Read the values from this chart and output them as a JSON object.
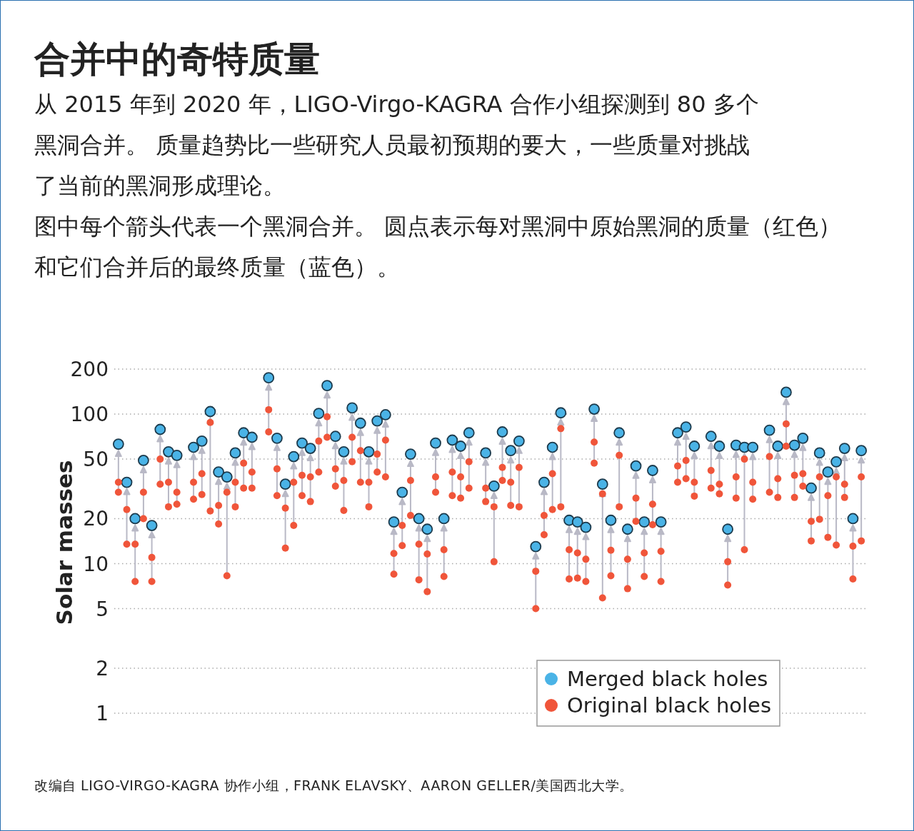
{
  "chart_data": {
    "type": "scatter",
    "title": "合并中的奇特质量",
    "subtitle": "从 2015 年到 2020 年，LIGO-Virgo-KAGRA 合作小组探测到 80 多个黑洞合并。 质量趋势比一些研究人员最初预期的要大，一些质量对挑战了当前的黑洞形成理论。",
    "annotations": [
      "图中每个箭头代表一个黑洞合并。 圆点表示每对黑洞中原始黑洞的质量（红色）和它们合并后的最终质量（蓝色）。",
      "改编自 LIGO-VIRGO-KAGRA 协作小组，FRANK ELAVSKY、AARON GELLER/美国西北大学。"
    ],
    "ylabel": "Solar masses",
    "log": "y",
    "grid": "y",
    "legend": "bottom right",
    "marker": "circle",
    "tick_labels": "y",
    "ylim": [
      1,
      200
    ],
    "yticks": [
      1,
      2,
      5,
      10,
      20,
      50,
      100,
      200
    ],
    "categories": [
      null,
      null,
      null,
      null,
      null,
      null,
      null,
      null,
      null,
      null,
      null,
      null,
      null,
      null,
      null,
      null,
      null,
      null,
      null,
      null,
      null,
      null,
      null,
      null,
      null,
      null,
      null,
      null,
      null,
      null,
      null,
      null,
      null,
      null,
      null,
      null,
      null,
      null,
      null,
      null,
      null,
      null,
      null,
      null,
      null,
      null,
      null,
      null,
      null,
      null,
      null,
      null,
      null,
      null,
      null,
      null,
      null,
      null,
      null,
      null,
      null,
      null,
      null,
      null,
      null,
      null,
      null,
      null,
      null,
      null,
      null,
      null,
      null,
      null,
      null,
      null,
      null,
      null,
      null,
      null,
      null,
      null,
      null,
      null,
      null,
      null,
      null,
      null,
      null,
      null
    ],
    "series": [
      {
        "name": "Merged black holes",
        "color": "#4ab3e6",
        "values": [
          63,
          35,
          20,
          49,
          18,
          79,
          56,
          53,
          null,
          60,
          66,
          104,
          41,
          38,
          55,
          75,
          70,
          null,
          175,
          69,
          34,
          52,
          64,
          59,
          101,
          155,
          71,
          56,
          110,
          87,
          56,
          90,
          99,
          19,
          30,
          54,
          20,
          17,
          64,
          20,
          67,
          61,
          75,
          null,
          55,
          33,
          76,
          57,
          66,
          null,
          13,
          35,
          60,
          102,
          19.5,
          19,
          17.5,
          108,
          34,
          19.5,
          75,
          17,
          45,
          19,
          42,
          19,
          null,
          75,
          82,
          61,
          null,
          71,
          61,
          17,
          62,
          60,
          60,
          null,
          78,
          61,
          140,
          62,
          69,
          32,
          55,
          41,
          48,
          59,
          20,
          57
        ]
      },
      {
        "name": "Original black holes",
        "color": "#f0553a",
        "values": [
          35,
          23,
          13.5,
          30,
          11,
          50,
          35,
          30,
          null,
          35,
          40,
          88,
          24.5,
          30,
          35,
          47,
          41,
          null,
          107,
          43,
          23.5,
          35,
          39,
          38,
          66,
          96,
          43,
          36,
          70,
          57,
          35,
          54,
          67,
          11.7,
          18,
          36,
          13.5,
          11.6,
          38,
          12.4,
          41,
          38,
          48,
          null,
          32,
          24,
          44,
          35,
          44,
          null,
          8.9,
          21,
          40,
          80,
          12.4,
          11.8,
          10.7,
          65,
          29.3,
          12.3,
          53,
          10.7,
          27.4,
          11.8,
          25,
          12.1,
          null,
          45,
          49,
          35,
          null,
          42,
          34,
          10.3,
          38,
          50,
          35,
          null,
          52,
          37,
          86,
          39,
          40,
          19.2,
          38,
          28.5,
          38,
          34,
          13.1,
          38
        ]
      },
      {
        "color": "#f0553a",
        "values": [
          30,
          13.5,
          7.6,
          20,
          7.6,
          34,
          24,
          25,
          null,
          27,
          29,
          22.5,
          18.4,
          8.3,
          24,
          32,
          32,
          null,
          76,
          28.5,
          12.7,
          18,
          28.5,
          26,
          41,
          70,
          33,
          22.7,
          48,
          35,
          24,
          41,
          38,
          8.5,
          13.2,
          21,
          7.8,
          6.5,
          30,
          8.2,
          28.5,
          27.4,
          32,
          null,
          26,
          10.3,
          36,
          24.5,
          24,
          null,
          5,
          15.6,
          23,
          24,
          7.9,
          8,
          7.6,
          47,
          5.9,
          8.3,
          24,
          6.8,
          19.2,
          8.2,
          18.2,
          7.6,
          null,
          35,
          37,
          28.3,
          null,
          32,
          29.3,
          7.2,
          27.4,
          12.4,
          27,
          null,
          30,
          27.7,
          61,
          27.7,
          33,
          14.2,
          19.8,
          15,
          13.3,
          27.7,
          7.9,
          14.2
        ]
      }
    ]
  }
}
